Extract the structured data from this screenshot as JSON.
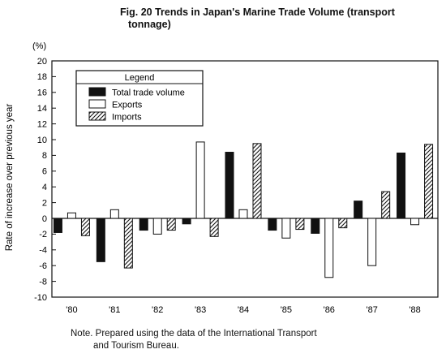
{
  "title": {
    "line1": "Fig. 20 Trends in Japan's Marine Trade Volume (transport",
    "line2": "tonnage)"
  },
  "note": {
    "line1": "Note. Prepared using the data of the International Transport",
    "line2": "and Tourism Bureau."
  },
  "colors": {
    "total": "#111111",
    "exports": "#ffffff",
    "imports_hatch": "#111111",
    "axis": "#111111"
  },
  "chart_data": {
    "type": "bar",
    "title": "Fig. 20 Trends in Japan's Marine Trade Volume (transport tonnage)",
    "ylabel": "Rate of increase over previous year",
    "yunit": "(%)",
    "xlabel": "",
    "ylim": [
      -10,
      20
    ],
    "yticks": [
      "20",
      "18",
      "16",
      "14",
      "12",
      "10",
      "8",
      "6",
      "4",
      "2",
      "0",
      "-2",
      "-4",
      "-6",
      "-8",
      "-10"
    ],
    "categories": [
      "'80",
      "'81",
      "'82",
      "'83",
      "'84",
      "'85",
      "'86",
      "'87",
      "'88"
    ],
    "legend": {
      "title": "Legend",
      "placement": "top-left"
    },
    "series": [
      {
        "name": "Total trade volume",
        "pattern": "solid",
        "values": [
          -1.8,
          -5.5,
          -1.5,
          -0.7,
          8.4,
          -1.5,
          -1.9,
          2.2,
          8.3
        ]
      },
      {
        "name": "Exports",
        "pattern": "open",
        "values": [
          0.7,
          1.1,
          -2.0,
          9.7,
          1.1,
          -2.5,
          -7.5,
          -6.0,
          -0.8
        ]
      },
      {
        "name": "Imports",
        "pattern": "hatched",
        "values": [
          -2.2,
          -6.3,
          -1.5,
          -2.3,
          9.5,
          -1.4,
          -1.2,
          3.4,
          9.4
        ]
      }
    ],
    "grid": false
  }
}
